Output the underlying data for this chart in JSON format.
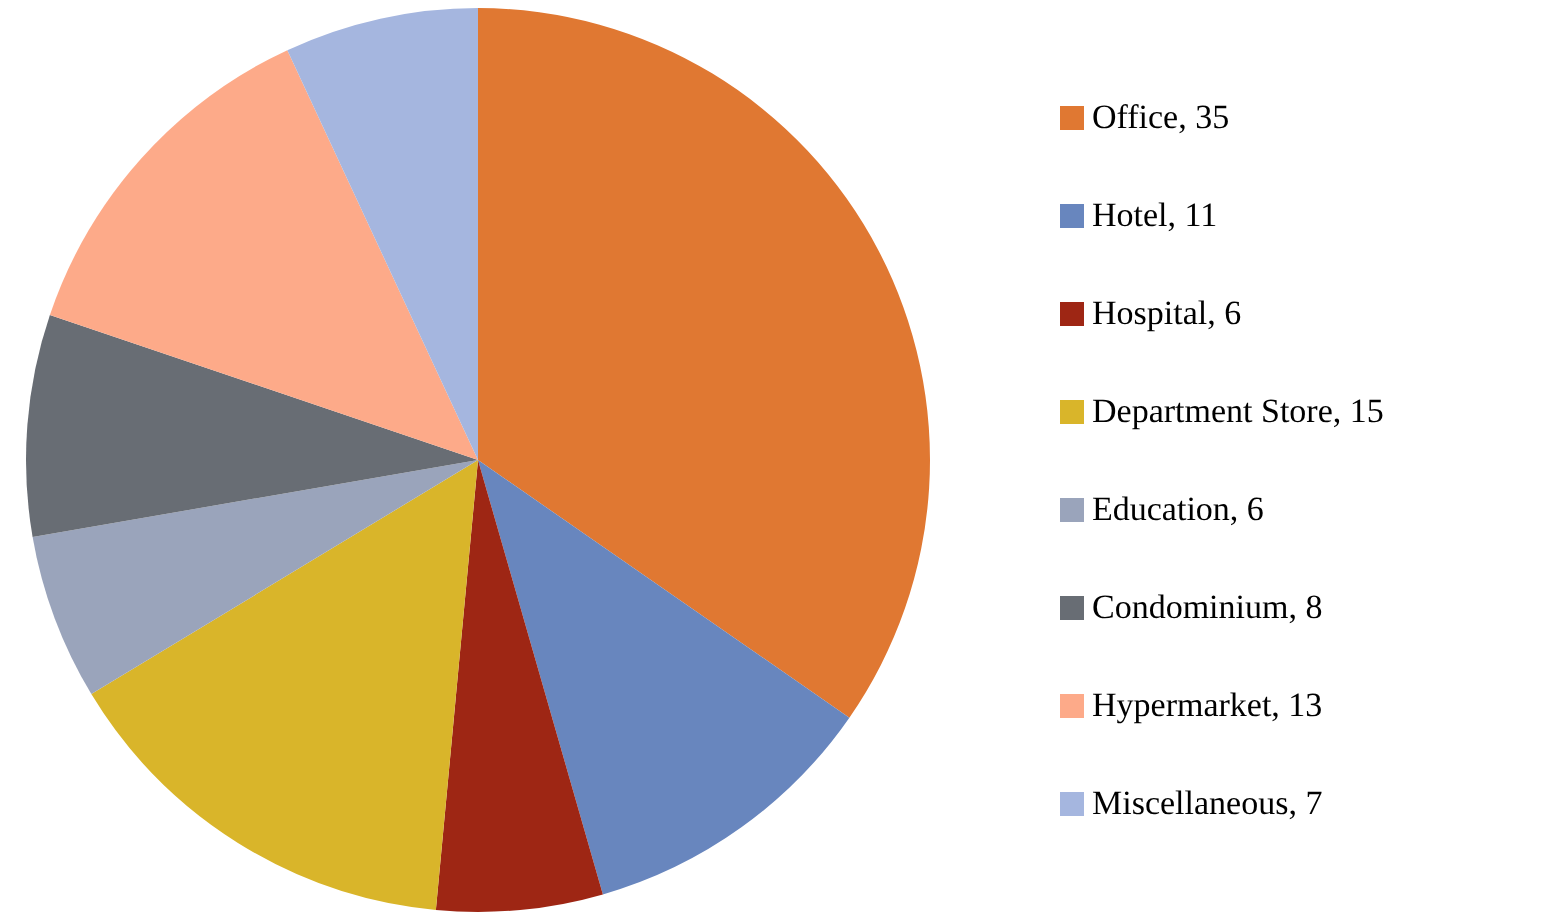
{
  "chart_data": {
    "type": "pie",
    "categories": [
      "Office, 35",
      "Hotel, 11",
      "Hospital, 6",
      "Department Store, 15",
      "Education, 6",
      "Condominium, 8",
      "Hypermarket, 13",
      "Miscellaneous, 7"
    ],
    "values": [
      35,
      11,
      6,
      15,
      6,
      8,
      13,
      7
    ],
    "colors": [
      "#e07832",
      "#6886be",
      "#9e2614",
      "#d9b52a",
      "#9aa4bb",
      "#686d74",
      "#fdaa89",
      "#a5b6df"
    ],
    "legend": "right"
  }
}
